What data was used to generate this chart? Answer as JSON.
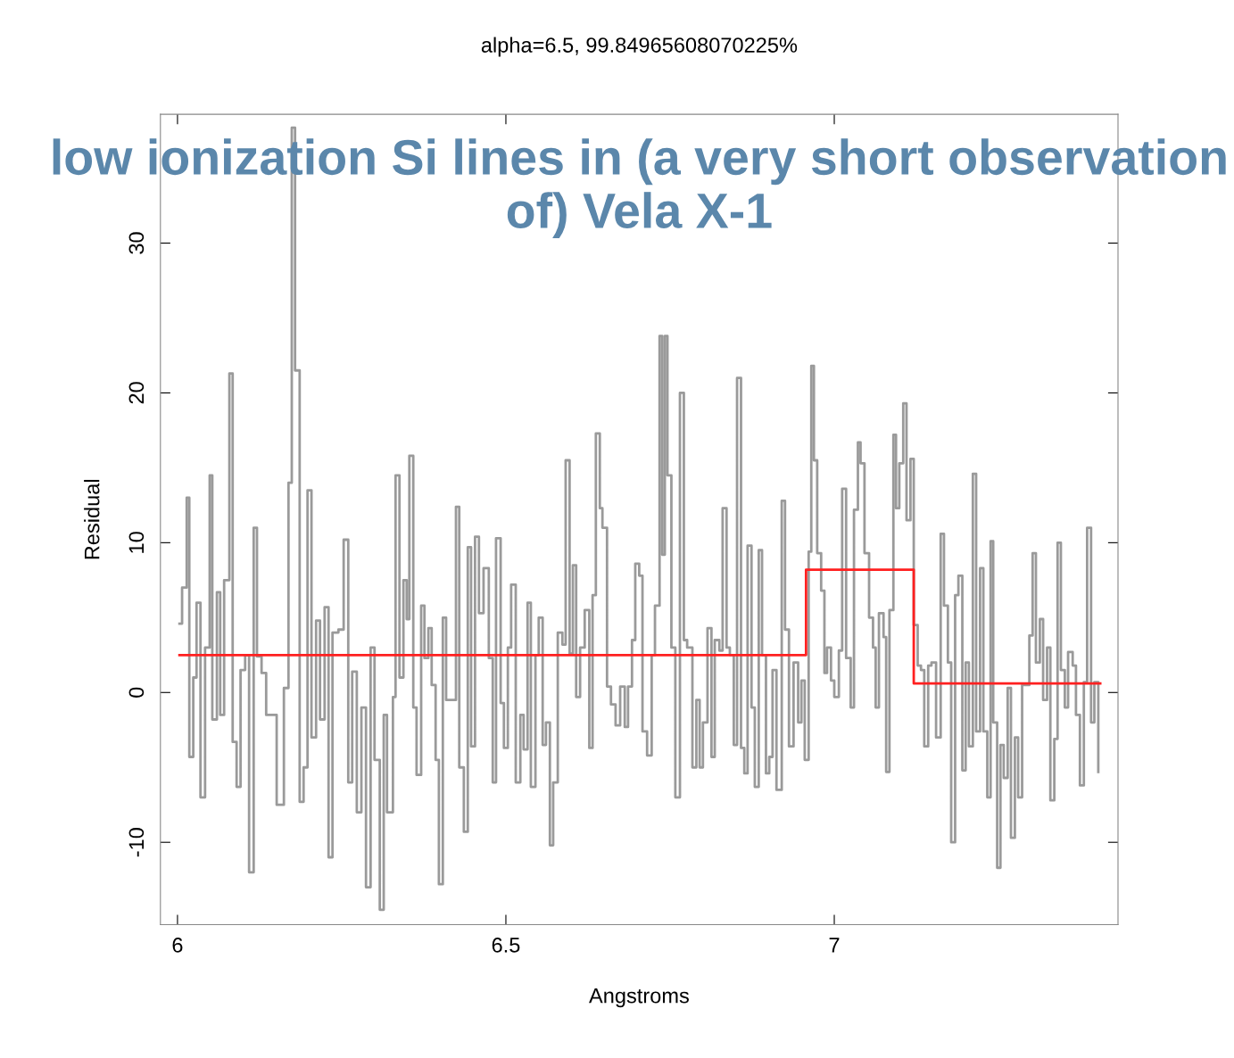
{
  "chart_data": {
    "type": "step",
    "title": "alpha=6.5, 99.84965608070225%",
    "xlabel": "Angstroms",
    "ylabel": "Residual",
    "annotations": [
      "low ionization Si lines in (a very short observation of) Vela X-1"
    ],
    "xlim": [
      5.974,
      7.432
    ],
    "ylim": [
      -15.5,
      38.6
    ],
    "xticks": [
      6,
      6.5,
      7
    ],
    "yticks": [
      -10,
      0,
      10,
      20,
      30
    ],
    "grid": false,
    "legend": false,
    "series": [
      {
        "color": "#9a9a9a",
        "x": [
          6.003,
          6.007,
          6.014,
          6.018,
          6.024,
          6.029,
          6.035,
          6.042,
          6.049,
          6.053,
          6.06,
          6.065,
          6.071,
          6.079,
          6.084,
          6.09,
          6.096,
          6.103,
          6.109,
          6.116,
          6.121,
          6.128,
          6.135,
          6.141,
          6.151,
          6.162,
          6.169,
          6.174,
          6.179,
          6.186,
          6.192,
          6.198,
          6.204,
          6.211,
          6.217,
          6.224,
          6.23,
          6.236,
          6.245,
          6.253,
          6.26,
          6.266,
          6.273,
          6.28,
          6.287,
          6.294,
          6.3,
          6.308,
          6.314,
          6.319,
          6.328,
          6.332,
          6.338,
          6.344,
          6.349,
          6.353,
          6.359,
          6.364,
          6.371,
          6.376,
          6.382,
          6.387,
          6.393,
          6.398,
          6.404,
          6.409,
          6.424,
          6.429,
          6.436,
          6.442,
          6.447,
          6.453,
          6.459,
          6.466,
          6.474,
          6.48,
          6.485,
          6.492,
          6.497,
          6.503,
          6.508,
          6.515,
          6.522,
          6.527,
          6.533,
          6.538,
          6.545,
          6.55,
          6.556,
          6.561,
          6.567,
          6.572,
          6.579,
          6.586,
          6.591,
          6.597,
          6.602,
          6.607,
          6.613,
          6.62,
          6.627,
          6.632,
          6.637,
          6.643,
          6.647,
          6.654,
          6.66,
          6.667,
          6.674,
          6.681,
          6.686,
          6.692,
          6.697,
          6.703,
          6.708,
          6.715,
          6.722,
          6.727,
          6.734,
          6.738,
          6.742,
          6.746,
          6.752,
          6.758,
          6.765,
          6.771,
          6.776,
          6.784,
          6.79,
          6.795,
          6.8,
          6.807,
          6.813,
          6.818,
          6.825,
          6.83,
          6.836,
          6.841,
          6.847,
          6.852,
          6.858,
          6.863,
          6.868,
          6.874,
          6.879,
          6.885,
          6.89,
          6.896,
          6.901,
          6.906,
          6.912,
          6.92,
          6.925,
          6.931,
          6.938,
          6.945,
          6.95,
          6.955,
          6.961,
          6.965,
          6.969,
          6.974,
          6.98,
          6.985,
          6.989,
          6.995,
          7.0,
          7.007,
          7.012,
          7.018,
          7.025,
          7.03,
          7.036,
          7.04,
          7.046,
          7.053,
          7.059,
          7.063,
          7.068,
          7.075,
          7.079,
          7.084,
          7.09,
          7.094,
          7.099,
          7.105,
          7.11,
          7.116,
          7.121,
          7.127,
          7.132,
          7.137,
          7.143,
          7.148,
          7.155,
          7.162,
          7.167,
          7.173,
          7.178,
          7.184,
          7.189,
          7.195,
          7.2,
          7.205,
          7.211,
          7.216,
          7.222,
          7.227,
          7.233,
          7.238,
          7.242,
          7.248,
          7.253,
          7.258,
          7.264,
          7.269,
          7.275,
          7.28,
          7.286,
          7.291,
          7.297,
          7.302,
          7.307,
          7.313,
          7.318,
          7.324,
          7.329,
          7.335,
          7.34,
          7.345,
          7.351,
          7.356,
          7.363,
          7.368,
          7.374,
          7.38,
          7.385,
          7.391,
          7.396,
          7.402
        ],
        "values": [
          4.6,
          7,
          13,
          -4.3,
          1,
          6,
          -7,
          3,
          14.5,
          -1.8,
          6.7,
          -1.5,
          7.5,
          21.3,
          -3.3,
          -6.3,
          1.5,
          2.5,
          -12,
          11,
          2.4,
          1.3,
          -1.5,
          -1.5,
          -7.5,
          0.3,
          14,
          37.7,
          21.5,
          -7.3,
          -5,
          13.5,
          -3,
          4.8,
          -1.8,
          5.7,
          -11,
          4,
          4.2,
          10.2,
          -6,
          1.4,
          -8,
          -1,
          -13,
          3,
          -4.5,
          -14.5,
          -1.5,
          -8,
          -0.3,
          14.5,
          1,
          7.5,
          4.9,
          15.8,
          -1,
          -5.5,
          5.8,
          2.3,
          4.3,
          0.5,
          -4.5,
          -12.8,
          5,
          -0.5,
          12.4,
          -5,
          -9.3,
          9.7,
          -3.6,
          10.4,
          5.3,
          8.3,
          2.3,
          -6,
          10.3,
          -0.7,
          -3.7,
          3,
          7.2,
          -6,
          -1.5,
          -3.8,
          6,
          -6.3,
          2.5,
          5,
          -3.5,
          -2,
          -10.2,
          -6,
          4,
          3.2,
          15.5,
          2.6,
          8.5,
          -0.3,
          3,
          5.5,
          -3.7,
          6.5,
          17.3,
          12.3,
          11,
          0.4,
          -0.8,
          -2.2,
          0.4,
          -2.3,
          0.4,
          3.5,
          8.6,
          7.8,
          -2.6,
          -4.2,
          2.5,
          5.8,
          23.8,
          9.2,
          23.8,
          14.5,
          3,
          -7,
          20,
          3.5,
          3,
          -5,
          -0.5,
          -5,
          -2,
          4.3,
          -4.3,
          3.5,
          2.8,
          12.3,
          3,
          2.5,
          -3.5,
          21,
          -3.7,
          -5.4,
          9.8,
          -1,
          -6.3,
          9.5,
          2.5,
          -5.4,
          -4.3,
          1.5,
          -6.5,
          12.8,
          4.2,
          -3.6,
          2,
          -2,
          0.8,
          -4.5,
          9.4,
          21.8,
          15.5,
          9.3,
          6.8,
          1.3,
          3,
          0.8,
          -0.3,
          2.8,
          13.6,
          2.3,
          -1,
          12.2,
          16.7,
          15.3,
          9.3,
          5,
          3,
          -1,
          5.3,
          3.7,
          -5.3,
          5.5,
          17.2,
          12.3,
          15.3,
          19.3,
          11.5,
          15.6,
          4.5,
          1.8,
          1.5,
          -3.6,
          1.8,
          2,
          -3,
          10.6,
          5.8,
          2,
          -10,
          6.5,
          7.8,
          -5.2,
          2,
          -3.6,
          14.6,
          -2.6,
          8.3,
          -2.6,
          -7,
          10.1,
          -2,
          -11.7,
          -3.5,
          -5.7,
          0.3,
          -9.7,
          -3,
          -7,
          0.5,
          0.5,
          3.8,
          9.3,
          2,
          4.9,
          -0.5,
          3,
          -7.2,
          -3.1,
          10,
          1.5,
          -1,
          2.7,
          1.8,
          -1.5,
          -6.2,
          0.7,
          11,
          -2,
          0.7,
          -5.3
        ]
      },
      {
        "color": "#ff2020",
        "x": [
          6.003,
          6.957,
          7.121,
          7.405
        ],
        "values": [
          2.5,
          8.2,
          0.6,
          0.6
        ]
      }
    ]
  }
}
